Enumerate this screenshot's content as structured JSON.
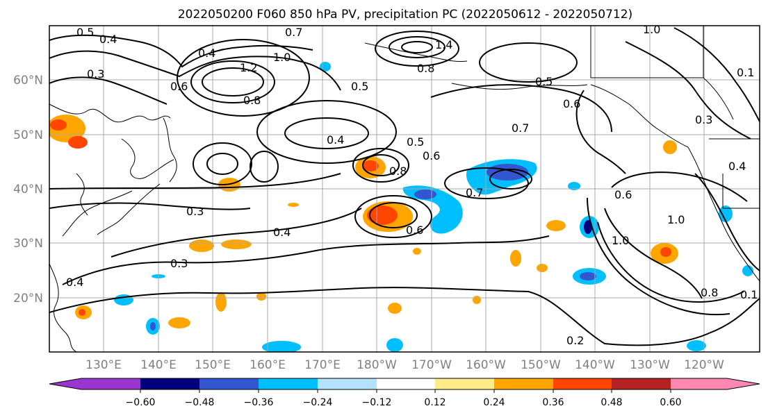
{
  "title": "2022050200 F060 850 hPa PV, precipitation PC (2022050612 - 2022050712)",
  "map": {
    "lat_labels": [
      "60°N",
      "50°N",
      "40°N",
      "30°N",
      "20°N"
    ],
    "lon_labels": [
      "130°E",
      "140°E",
      "150°E",
      "160°E",
      "170°E",
      "180°W",
      "170°W",
      "160°W",
      "150°W",
      "140°W",
      "130°W",
      "120°W"
    ],
    "contour_labels": [
      "0.5",
      "0.4",
      "0.7",
      "1.0",
      "1.2",
      "1.4",
      "0.8",
      "0.4",
      "0.5",
      "0.6",
      "0.3",
      "0.6",
      "0.8",
      "0.5",
      "0.3",
      "0.6",
      "0.7",
      "0.4",
      "0.5",
      "0.6",
      "0.8",
      "0.7",
      "0.3",
      "0.4",
      "0.6",
      "0.3",
      "0.4",
      "1.0",
      "1.0",
      "0.8",
      "0.2",
      "0.4",
      "0.1",
      "1.0",
      "0.1"
    ]
  },
  "colorbar": {
    "tick_labels": [
      "−0.60",
      "−0.48",
      "−0.36",
      "−0.24",
      "−0.12",
      "0.12",
      "0.24",
      "0.36",
      "0.48",
      "0.60"
    ],
    "colors": [
      "#9a35d0",
      "#00007f",
      "#3256d0",
      "#00bfff",
      "#b3e2ff",
      "#ffffff",
      "#ffec8b",
      "#ffa500",
      "#ff4500",
      "#b22222",
      "#ff88b0"
    ]
  }
}
